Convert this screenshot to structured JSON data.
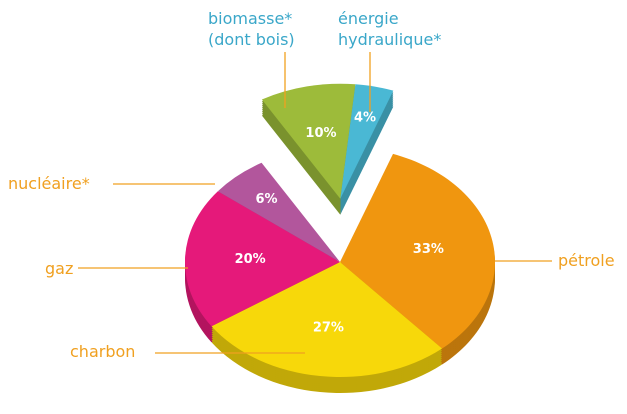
{
  "chart_data": {
    "type": "pie",
    "categories": [
      "pétrole",
      "charbon",
      "gaz",
      "nucléaire*",
      "biomasse* (dont bois)",
      "énergie hydraulique*"
    ],
    "values": [
      33,
      27,
      20,
      6,
      10,
      4
    ],
    "value_labels": [
      "33%",
      "27%",
      "20%",
      "6%",
      "10%",
      "4%"
    ],
    "colors": [
      "#f0960f",
      "#f7d80a",
      "#e5197a",
      "#b2569c",
      "#9dbb3a",
      "#4ab8d4"
    ],
    "exploded": [
      false,
      false,
      false,
      false,
      true,
      true
    ]
  }
}
